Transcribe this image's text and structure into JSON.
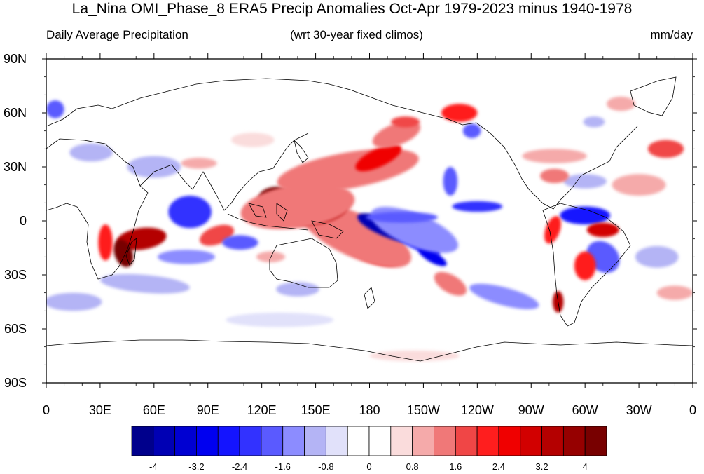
{
  "title": "La_Nina OMI_Phase_8 ERA5 Precip Anomalies Oct-Apr 1979-2023 minus 1940-1978",
  "subtitle_left": "Daily Average Precipitation",
  "subtitle_center": "(wrt 30-year fixed climos)",
  "subtitle_right": "mm/day",
  "lat_ticks": [
    {
      "value": 90,
      "label": "90N"
    },
    {
      "value": 60,
      "label": "60N"
    },
    {
      "value": 30,
      "label": "30N"
    },
    {
      "value": 0,
      "label": "0"
    },
    {
      "value": -30,
      "label": "30S"
    },
    {
      "value": -60,
      "label": "60S"
    },
    {
      "value": -90,
      "label": "90S"
    }
  ],
  "lon_ticks": [
    {
      "value": 0,
      "label": "0"
    },
    {
      "value": 30,
      "label": "30E"
    },
    {
      "value": 60,
      "label": "60E"
    },
    {
      "value": 90,
      "label": "90E"
    },
    {
      "value": 120,
      "label": "120E"
    },
    {
      "value": 150,
      "label": "150E"
    },
    {
      "value": 180,
      "label": "180"
    },
    {
      "value": 210,
      "label": "150W"
    },
    {
      "value": 240,
      "label": "120W"
    },
    {
      "value": 270,
      "label": "90W"
    },
    {
      "value": 300,
      "label": "60W"
    },
    {
      "value": 330,
      "label": "30W"
    },
    {
      "value": 360,
      "label": "0"
    }
  ],
  "colorbar": {
    "colors": [
      "#00008c",
      "#0000b4",
      "#0000d2",
      "#0000f0",
      "#1414ff",
      "#3232ff",
      "#5a5aff",
      "#8c8cff",
      "#b4b4f5",
      "#e1e1fa",
      "#ffffff",
      "#ffffff",
      "#fadcdc",
      "#f5aaaa",
      "#f07878",
      "#f04646",
      "#ff1e1e",
      "#f00000",
      "#d20000",
      "#b40000",
      "#960000",
      "#780000"
    ],
    "labels": [
      "-4",
      "-3.2",
      "-2.4",
      "-1.6",
      "-0.8",
      "0",
      "0.8",
      "1.6",
      "2.4",
      "3.2",
      "4"
    ]
  },
  "anomalies": [
    {
      "lon": 182,
      "lat": -15,
      "rx": 16,
      "ry": 6,
      "rot": 28,
      "value": 4.2
    },
    {
      "lon": 178,
      "lat": -12,
      "rx": 22,
      "ry": 9,
      "rot": 28,
      "value": 2.6
    },
    {
      "lon": 172,
      "lat": -8,
      "rx": 34,
      "ry": 12,
      "rot": 25,
      "value": 1.2
    },
    {
      "lon": 190,
      "lat": -4,
      "rx": 18,
      "ry": 5,
      "rot": 22,
      "value": -3.6
    },
    {
      "lon": 205,
      "lat": -11,
      "rx": 16,
      "ry": 4,
      "rot": 28,
      "value": -2.6
    },
    {
      "lon": 215,
      "lat": -20,
      "rx": 9,
      "ry": 3,
      "rot": 30,
      "value": -3.0
    },
    {
      "lon": 205,
      "lat": -5,
      "rx": 26,
      "ry": 9,
      "rot": 22,
      "value": -1.2
    },
    {
      "lon": 150,
      "lat": 5,
      "rx": 18,
      "ry": 7,
      "rot": -10,
      "value": 3.2
    },
    {
      "lon": 128,
      "lat": 12,
      "rx": 10,
      "ry": 7,
      "rot": 0,
      "value": 4.0
    },
    {
      "lon": 140,
      "lat": 8,
      "rx": 32,
      "ry": 12,
      "rot": -8,
      "value": 1.4
    },
    {
      "lon": 168,
      "lat": 28,
      "rx": 40,
      "ry": 10,
      "rot": -10,
      "value": 1.2
    },
    {
      "lon": 185,
      "lat": 35,
      "rx": 14,
      "ry": 5,
      "rot": -25,
      "value": 2.6
    },
    {
      "lon": 195,
      "lat": 48,
      "rx": 14,
      "ry": 6,
      "rot": -20,
      "value": 1.5
    },
    {
      "lon": 198,
      "lat": 2,
      "rx": 20,
      "ry": 3,
      "rot": 0,
      "value": -2.0
    },
    {
      "lon": 240,
      "lat": 8,
      "rx": 14,
      "ry": 3,
      "rot": 0,
      "value": -2.4
    },
    {
      "lon": 300,
      "lat": 3,
      "rx": 14,
      "ry": 5,
      "rot": 0,
      "value": -2.6
    },
    {
      "lon": 310,
      "lat": -5,
      "rx": 9,
      "ry": 4,
      "rot": 0,
      "value": 2.8
    },
    {
      "lon": 310,
      "lat": -20,
      "rx": 10,
      "ry": 8,
      "rot": 40,
      "value": -1.8
    },
    {
      "lon": 300,
      "lat": -25,
      "rx": 6,
      "ry": 8,
      "rot": 0,
      "value": 2.0
    },
    {
      "lon": 285,
      "lat": -45,
      "rx": 3,
      "ry": 6,
      "rot": 0,
      "value": 3.4
    },
    {
      "lon": 282,
      "lat": -5,
      "rx": 4,
      "ry": 8,
      "rot": 20,
      "value": 2.2
    },
    {
      "lon": 53,
      "lat": -10,
      "rx": 14,
      "ry": 6,
      "rot": -8,
      "value": 3.6
    },
    {
      "lon": 43,
      "lat": -18,
      "rx": 5,
      "ry": 8,
      "rot": -20,
      "value": 4.0
    },
    {
      "lon": 33,
      "lat": -12,
      "rx": 4,
      "ry": 10,
      "rot": 0,
      "value": 2.0
    },
    {
      "lon": 80,
      "lat": 5,
      "rx": 12,
      "ry": 9,
      "rot": 0,
      "value": -2.4
    },
    {
      "lon": 95,
      "lat": -8,
      "rx": 10,
      "ry": 5,
      "rot": -20,
      "value": 1.8
    },
    {
      "lon": 108,
      "lat": -12,
      "rx": 10,
      "ry": 4,
      "rot": 0,
      "value": -1.6
    },
    {
      "lon": 78,
      "lat": -20,
      "rx": 16,
      "ry": 4,
      "rot": 0,
      "value": -1.2
    },
    {
      "lon": 55,
      "lat": -35,
      "rx": 25,
      "ry": 5,
      "rot": 5,
      "value": -0.9
    },
    {
      "lon": 255,
      "lat": -42,
      "rx": 20,
      "ry": 5,
      "rot": 15,
      "value": -1.4
    },
    {
      "lon": 225,
      "lat": -35,
      "rx": 10,
      "ry": 5,
      "rot": 30,
      "value": 1.4
    },
    {
      "lon": 225,
      "lat": 22,
      "rx": 4,
      "ry": 8,
      "rot": 0,
      "value": -1.6
    },
    {
      "lon": 230,
      "lat": 60,
      "rx": 10,
      "ry": 5,
      "rot": 0,
      "value": 2.2
    },
    {
      "lon": 237,
      "lat": 50,
      "rx": 5,
      "ry": 4,
      "rot": 0,
      "value": -1.8
    },
    {
      "lon": 345,
      "lat": 40,
      "rx": 10,
      "ry": 5,
      "rot": 0,
      "value": 1.8
    },
    {
      "lon": 330,
      "lat": 20,
      "rx": 15,
      "ry": 6,
      "rot": 0,
      "value": 0.9
    },
    {
      "lon": 300,
      "lat": 22,
      "rx": 12,
      "ry": 4,
      "rot": 0,
      "value": -0.9
    },
    {
      "lon": 283,
      "lat": 25,
      "rx": 8,
      "ry": 4,
      "rot": 0,
      "value": 1.4
    },
    {
      "lon": 283,
      "lat": 36,
      "rx": 18,
      "ry": 4,
      "rot": 0,
      "value": 1.0
    },
    {
      "lon": 85,
      "lat": 32,
      "rx": 10,
      "ry": 3,
      "rot": 0,
      "value": 0.9
    },
    {
      "lon": 60,
      "lat": 30,
      "rx": 15,
      "ry": 6,
      "rot": 0,
      "value": -0.9
    },
    {
      "lon": 25,
      "lat": 38,
      "rx": 12,
      "ry": 5,
      "rot": 0,
      "value": -0.9
    },
    {
      "lon": 5,
      "lat": 62,
      "rx": 5,
      "ry": 5,
      "rot": 0,
      "value": -1.8
    },
    {
      "lon": 130,
      "lat": -55,
      "rx": 30,
      "ry": 4,
      "rot": 0,
      "value": -0.8
    },
    {
      "lon": 205,
      "lat": -75,
      "rx": 25,
      "ry": 3,
      "rot": 0,
      "value": 0.8
    },
    {
      "lon": 340,
      "lat": -20,
      "rx": 12,
      "ry": 6,
      "rot": 0,
      "value": -0.9
    },
    {
      "lon": 350,
      "lat": -40,
      "rx": 10,
      "ry": 4,
      "rot": 0,
      "value": 0.9
    },
    {
      "lon": 15,
      "lat": -45,
      "rx": 16,
      "ry": 5,
      "rot": 0,
      "value": -0.9
    },
    {
      "lon": 140,
      "lat": -38,
      "rx": 12,
      "ry": 4,
      "rot": 0,
      "value": -0.9
    },
    {
      "lon": 125,
      "lat": -20,
      "rx": 8,
      "ry": 3,
      "rot": 0,
      "value": 0.9
    },
    {
      "lon": 115,
      "lat": 45,
      "rx": 12,
      "ry": 4,
      "rot": 0,
      "value": 0.8
    },
    {
      "lon": 320,
      "lat": 65,
      "rx": 8,
      "ry": 4,
      "rot": 0,
      "value": 0.9
    },
    {
      "lon": 305,
      "lat": 55,
      "rx": 6,
      "ry": 3,
      "rot": 0,
      "value": -0.9
    },
    {
      "lon": 200,
      "lat": 55,
      "rx": 8,
      "ry": 3,
      "rot": 0,
      "value": 1.8
    }
  ]
}
